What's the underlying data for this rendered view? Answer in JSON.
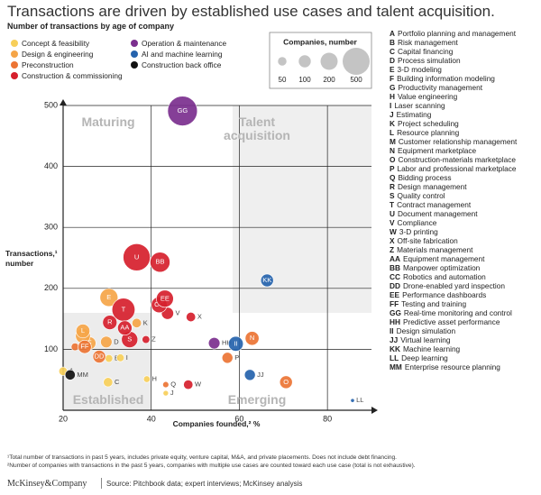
{
  "chart_data": {
    "type": "bubble",
    "title": "Transactions are driven by established use cases and talent acquisition.",
    "subtitle": "Number of transactions by age of company",
    "x_label": "Companies founded,² %",
    "y_label": "Transactions,¹ number",
    "xlim": [
      20,
      90
    ],
    "xticks": [
      20,
      40,
      60,
      80
    ],
    "ylim": [
      0,
      500
    ],
    "yticks": [
      100,
      200,
      300,
      400,
      500
    ],
    "grid": true,
    "quadrant_labels": [
      "Maturing",
      "Talent acquisition",
      "Established",
      "Emerging"
    ],
    "size_legend": {
      "title": "Companies, number",
      "values": [
        50,
        100,
        200,
        500
      ]
    },
    "series": [
      {
        "name": "Concept & feasibility",
        "color": "#f7cf5a",
        "labels": [
          "A",
          "B",
          "C",
          "H",
          "I",
          "J"
        ],
        "x": [
          20,
          30.4,
          30.2,
          39,
          33,
          43.3
        ],
        "values": [
          64,
          85,
          46,
          51,
          86,
          28
        ],
        "sizes": [
          50,
          40,
          60,
          30,
          40,
          20
        ]
      },
      {
        "name": "Design & engineering",
        "color": "#f5a548",
        "labels": [
          "D",
          "E",
          "F",
          "G",
          "K",
          "L"
        ],
        "x": [
          29.8,
          30.4,
          26,
          24.5,
          36.7,
          24.5
        ],
        "values": [
          112,
          185,
          110,
          122,
          143,
          130
        ],
        "sizes": [
          90,
          220,
          110,
          150,
          60,
          130
        ]
      },
      {
        "name": "Preconstruction",
        "color": "#ec7434",
        "labels": [
          "M",
          "N",
          "O",
          "P",
          "Q",
          "DD",
          "FF"
        ],
        "x": [
          22.7,
          62.9,
          70.6,
          57.3,
          43.3,
          28.2,
          24.9
        ],
        "values": [
          104,
          118,
          46,
          86,
          42,
          88,
          104
        ],
        "sizes": [
          40,
          130,
          110,
          80,
          25,
          110,
          120
        ]
      },
      {
        "name": "Construction & commissioning",
        "color": "#d61f2c",
        "labels": [
          "R",
          "S",
          "T",
          "U",
          "V",
          "W",
          "X",
          "Z",
          "AA",
          "BB",
          "CC",
          "EE"
        ],
        "x": [
          30.6,
          35.1,
          33.7,
          36.7,
          43.7,
          48.4,
          49,
          38.8,
          34,
          42,
          41.8,
          43.1
        ],
        "values": [
          144,
          116,
          165,
          251,
          159,
          42,
          153,
          116,
          135,
          243,
          173,
          183
        ],
        "sizes": [
          140,
          180,
          360,
          500,
          100,
          60,
          60,
          40,
          140,
          270,
          170,
          200
        ]
      },
      {
        "name": "Operation & maintenance",
        "color": "#7b2f8e",
        "labels": [
          "GG",
          "HH"
        ],
        "x": [
          47.1,
          54.3
        ],
        "values": [
          491,
          110
        ],
        "sizes": [
          600,
          90
        ]
      },
      {
        "name": "AI and machine learning",
        "color": "#2563ad",
        "labels": [
          "II",
          "JJ",
          "KK",
          "LL"
        ],
        "x": [
          59.2,
          62.4,
          66.3,
          85.7
        ],
        "values": [
          109,
          58,
          213,
          16
        ],
        "sizes": [
          150,
          80,
          110,
          10
        ]
      },
      {
        "name": "Construction back office",
        "color": "#111111",
        "labels": [
          "MM"
        ],
        "x": [
          21.6
        ],
        "values": [
          58
        ],
        "sizes": [
          70
        ]
      }
    ],
    "key": [
      {
        "letter": "A",
        "name": "Portfolio planning and management"
      },
      {
        "letter": "B",
        "name": "Risk management"
      },
      {
        "letter": "C",
        "name": "Capital financing"
      },
      {
        "letter": "D",
        "name": "Process simulation"
      },
      {
        "letter": "E",
        "name": "3-D modeling"
      },
      {
        "letter": "F",
        "name": "Building information modeling"
      },
      {
        "letter": "G",
        "name": "Productivity management"
      },
      {
        "letter": "H",
        "name": "Value engineering"
      },
      {
        "letter": "I",
        "name": "Laser scanning"
      },
      {
        "letter": "J",
        "name": "Estimating"
      },
      {
        "letter": "K",
        "name": "Project scheduling"
      },
      {
        "letter": "L",
        "name": "Resource planning"
      },
      {
        "letter": "M",
        "name": "Customer relationship management"
      },
      {
        "letter": "N",
        "name": "Equipment marketplace"
      },
      {
        "letter": "O",
        "name": "Construction-materials marketplace"
      },
      {
        "letter": "P",
        "name": "Labor and professional marketplace"
      },
      {
        "letter": "Q",
        "name": "Bidding process"
      },
      {
        "letter": "R",
        "name": "Design management"
      },
      {
        "letter": "S",
        "name": "Quality control"
      },
      {
        "letter": "T",
        "name": "Contract management"
      },
      {
        "letter": "U",
        "name": "Document management"
      },
      {
        "letter": "V",
        "name": "Compliance"
      },
      {
        "letter": "W",
        "name": "3-D printing"
      },
      {
        "letter": "X",
        "name": "Off-site fabrication"
      },
      {
        "letter": "Z",
        "name": "Materials management"
      },
      {
        "letter": "AA",
        "name": "Equipment management"
      },
      {
        "letter": "BB",
        "name": "Manpower optimization"
      },
      {
        "letter": "CC",
        "name": "Robotics and automation"
      },
      {
        "letter": "DD",
        "name": "Drone-enabled yard inspection"
      },
      {
        "letter": "EE",
        "name": "Performance dashboards"
      },
      {
        "letter": "FF",
        "name": "Testing and training"
      },
      {
        "letter": "GG",
        "name": "Real-time monitoring and control"
      },
      {
        "letter": "HH",
        "name": "Predictive asset performance"
      },
      {
        "letter": "II",
        "name": "Design simulation"
      },
      {
        "letter": "JJ",
        "name": "Virtual learning"
      },
      {
        "letter": "KK",
        "name": "Machine learning"
      },
      {
        "letter": "LL",
        "name": "Deep learning"
      },
      {
        "letter": "MM",
        "name": "Enterprise resource planning"
      }
    ],
    "footnotes": [
      "¹Total number of transactions in past 5 years, includes private equity, venture capital, M&A, and private placements. Does not include debt financing.",
      "²Number of companies with transactions in the past 5 years, companies with multiple use cases are counted toward each use case (total is not exhaustive)."
    ],
    "source_brand": "McKinsey&Company",
    "source": "Source: Pitchbook data; expert interviews; McKinsey analysis"
  }
}
